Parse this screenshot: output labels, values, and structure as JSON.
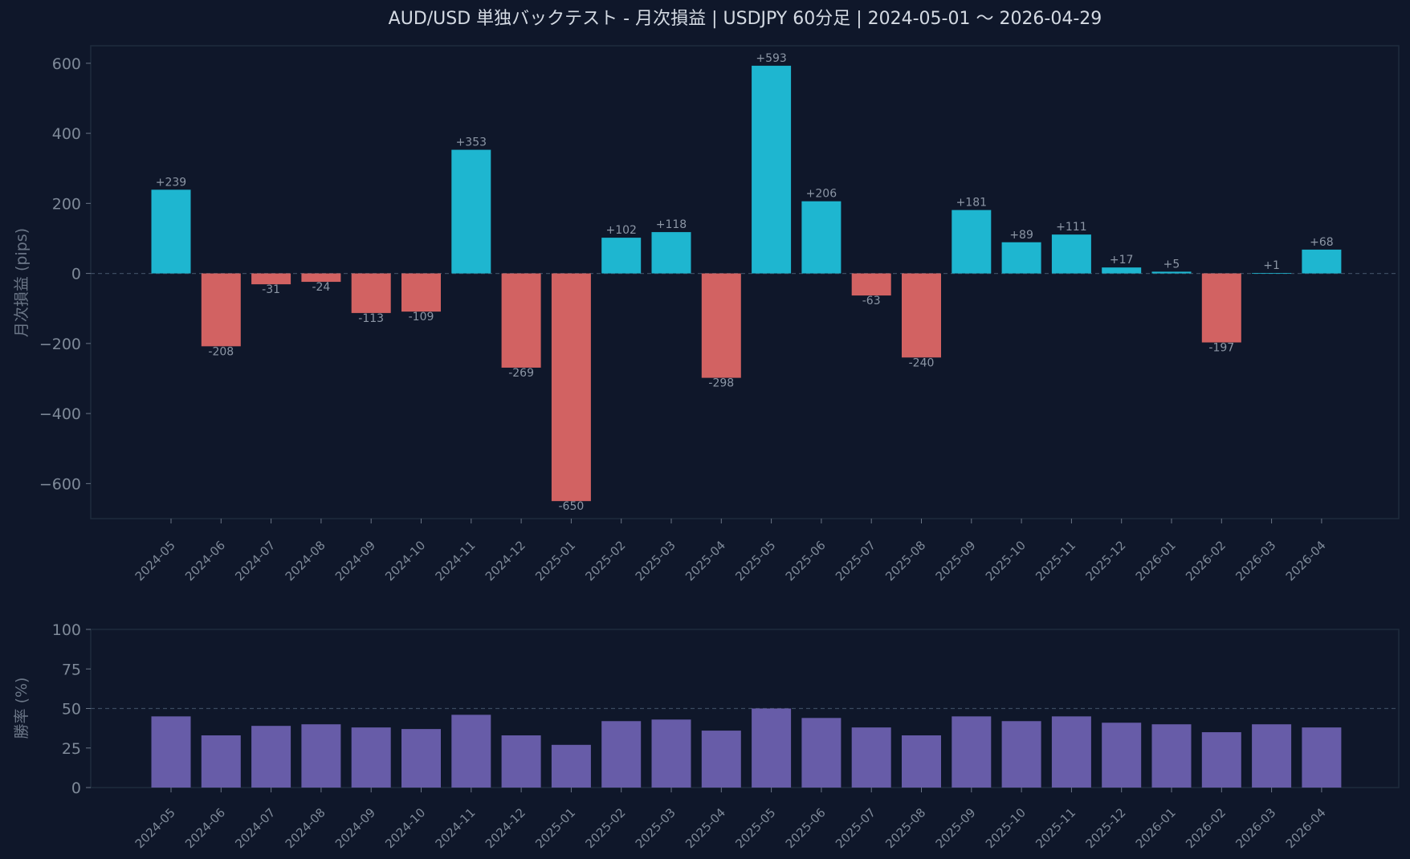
{
  "title": "AUD/USD 単独バックテスト - 月次損益 | USDJPY 60分足 | 2024-05-01 〜 2026-04-29",
  "colors": {
    "background": "#0f172a",
    "frame": "#1f2b3d",
    "zero_line": "#3b4a60",
    "positive": "#1eb6d0",
    "negative": "#d26262",
    "winrate": "#675ca8"
  },
  "chart_data": [
    {
      "type": "bar",
      "ylabel": "月次損益 (pips)",
      "ylim": [
        -700,
        650
      ],
      "yticks": [
        -600,
        -400,
        -200,
        0,
        200,
        400,
        600
      ],
      "ytick_labels": [
        "−600",
        "−400",
        "−200",
        "0",
        "200",
        "400",
        "600"
      ],
      "reference_line": 0,
      "categories": [
        "2024-05",
        "2024-06",
        "2024-07",
        "2024-08",
        "2024-09",
        "2024-10",
        "2024-11",
        "2024-12",
        "2025-01",
        "2025-02",
        "2025-03",
        "2025-04",
        "2025-05",
        "2025-06",
        "2025-07",
        "2025-08",
        "2025-09",
        "2025-10",
        "2025-11",
        "2025-12",
        "2026-01",
        "2026-02",
        "2026-03",
        "2026-04"
      ],
      "values": [
        239,
        -208,
        -31,
        -24,
        -113,
        -109,
        353,
        -269,
        -650,
        102,
        118,
        -298,
        593,
        206,
        -63,
        -240,
        181,
        89,
        111,
        17,
        5,
        -197,
        1,
        68
      ],
      "data_labels": [
        "+239",
        "-208",
        "-31",
        "-24",
        "-113",
        "-109",
        "+353",
        "-269",
        "-650",
        "+102",
        "+118",
        "-298",
        "+593",
        "+206",
        "-63",
        "-240",
        "+181",
        "+89",
        "+111",
        "+17",
        "+5",
        "-197",
        "+1",
        "+68"
      ],
      "grid": false
    },
    {
      "type": "bar",
      "ylabel": "勝率 (%)",
      "ylim": [
        0,
        100
      ],
      "yticks": [
        0,
        25,
        50,
        75,
        100
      ],
      "ytick_labels": [
        "0",
        "25",
        "50",
        "75",
        "100"
      ],
      "reference_line": 50,
      "categories": [
        "2024-05",
        "2024-06",
        "2024-07",
        "2024-08",
        "2024-09",
        "2024-10",
        "2024-11",
        "2024-12",
        "2025-01",
        "2025-02",
        "2025-03",
        "2025-04",
        "2025-05",
        "2025-06",
        "2025-07",
        "2025-08",
        "2025-09",
        "2025-10",
        "2025-11",
        "2025-12",
        "2026-01",
        "2026-02",
        "2026-03",
        "2026-04"
      ],
      "values": [
        45,
        33,
        39,
        40,
        38,
        37,
        46,
        33,
        27,
        42,
        43,
        36,
        50,
        44,
        38,
        33,
        45,
        42,
        45,
        41,
        40,
        35,
        40,
        38
      ],
      "grid": false
    }
  ]
}
